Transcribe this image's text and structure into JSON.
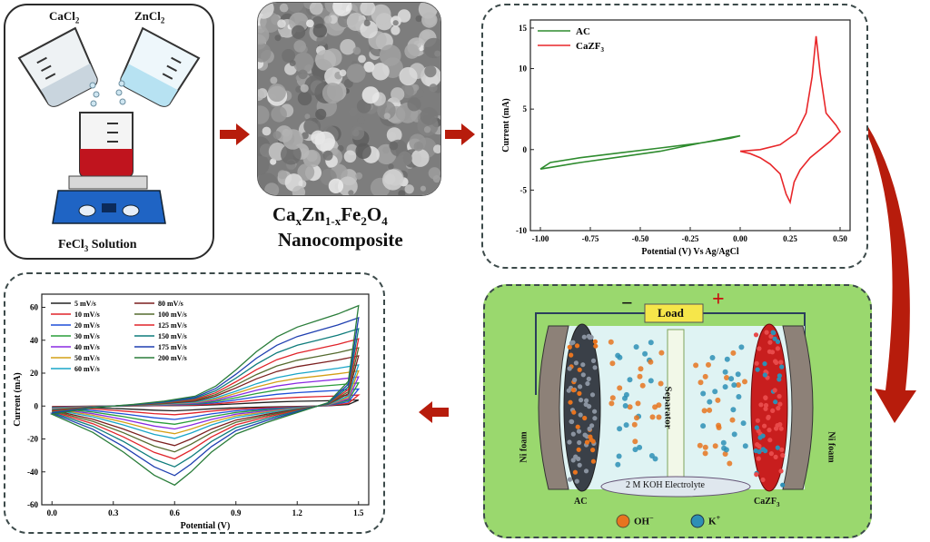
{
  "synthesis": {
    "reagent_left": "CaCl",
    "reagent_left_sub": "2",
    "reagent_right": "ZnCl",
    "reagent_right_sub": "2",
    "solution": "FeCl",
    "solution_sub": "3",
    "solution_suffix": " Solution"
  },
  "product": {
    "formula_parts": [
      "Ca",
      "x",
      "Zn",
      "1-x",
      "Fe",
      "2",
      "O",
      "4"
    ],
    "name": "Nanocomposite"
  },
  "device": {
    "minus_sign": "−",
    "plus_sign": "+",
    "load_label": "Load",
    "separator_label": "Separator",
    "left_foam_label": "Ni foam",
    "right_foam_label": "Ni foam",
    "electrolyte_label": "2 M KOH Electrolyte",
    "left_electrode_label": "AC",
    "right_electrode_label": "CaZF",
    "right_electrode_sub": "3",
    "ion_oh_label": "OH",
    "ion_oh_sup": "−",
    "ion_k_label": "K",
    "ion_k_sup": "+",
    "colors": {
      "panel_bg": "#9ad86e",
      "ac": "#3a4048",
      "czf": "#c81e1e",
      "oh": "#e8741f",
      "k": "#2e8fb5"
    }
  },
  "arrow_color": "#b71c0c",
  "chart_data": [
    {
      "id": "cv_comparison",
      "type": "line",
      "xlabel": "Potential (V) Vs Ag/AgCl",
      "ylabel": "Current (mA)",
      "xlim": [
        -1.05,
        0.55
      ],
      "ylim": [
        -10,
        16
      ],
      "xticks": [
        "-1.00",
        "-0.75",
        "-0.50",
        "-0.25",
        "0.00",
        "0.25",
        "0.50"
      ],
      "xtick_values": [
        -1.0,
        -0.75,
        -0.5,
        -0.25,
        0.0,
        0.25,
        0.5
      ],
      "yticks": [
        "15",
        "10",
        "5",
        "0",
        "-5",
        "-10"
      ],
      "ytick_values": [
        15,
        10,
        5,
        0,
        -5,
        -10
      ],
      "legend_position": "top-left",
      "series": [
        {
          "name": "AC",
          "color": "#2e8b2e",
          "x": [
            -1.0,
            -0.95,
            -0.8,
            -0.6,
            -0.4,
            -0.2,
            -0.05,
            0.0,
            -0.05,
            -0.2,
            -0.4,
            -0.6,
            -0.8,
            -0.95,
            -1.0
          ],
          "y": [
            -2.4,
            -1.6,
            -1.0,
            -0.4,
            0.2,
            0.8,
            1.4,
            1.7,
            1.5,
            0.8,
            -0.2,
            -0.9,
            -1.6,
            -2.2,
            -2.4
          ]
        },
        {
          "name": "CaZF3",
          "color": "#e8272a",
          "x": [
            0.0,
            0.1,
            0.2,
            0.28,
            0.33,
            0.36,
            0.38,
            0.4,
            0.43,
            0.48,
            0.5,
            0.49,
            0.45,
            0.4,
            0.35,
            0.3,
            0.27,
            0.25,
            0.23,
            0.2,
            0.15,
            0.1,
            0.05,
            0.0
          ],
          "y": [
            -0.2,
            0.0,
            0.6,
            2.0,
            4.5,
            9.0,
            14.0,
            9.5,
            4.5,
            3.0,
            2.2,
            2.0,
            1.0,
            0.0,
            -1.0,
            -2.5,
            -4.0,
            -6.5,
            -5.5,
            -3.0,
            -1.8,
            -1.0,
            -0.5,
            -0.2
          ]
        }
      ]
    },
    {
      "id": "cv_scan_rates",
      "type": "line",
      "xlabel": "Potential (V)",
      "ylabel": "Current (mA)",
      "xlim": [
        -0.05,
        1.55
      ],
      "ylim": [
        -60,
        68
      ],
      "xticks": [
        "0.0",
        "0.3",
        "0.6",
        "0.9",
        "1.2",
        "1.5"
      ],
      "xtick_values": [
        0.0,
        0.3,
        0.6,
        0.9,
        1.2,
        1.5
      ],
      "yticks": [
        "60",
        "40",
        "20",
        "0",
        "-20",
        "-40",
        "-60"
      ],
      "ytick_values": [
        60,
        40,
        20,
        0,
        -20,
        -40,
        -60
      ],
      "legend_position": "top-left",
      "series": [
        {
          "name": "5 mV/s",
          "scale": 0.06,
          "color": "#222222"
        },
        {
          "name": "10 mV/s",
          "scale": 0.11,
          "color": "#e0242a"
        },
        {
          "name": "20 mV/s",
          "scale": 0.17,
          "color": "#1f4fd8"
        },
        {
          "name": "30 mV/s",
          "scale": 0.23,
          "color": "#2a9d3a"
        },
        {
          "name": "40 mV/s",
          "scale": 0.29,
          "color": "#8a2be2"
        },
        {
          "name": "50 mV/s",
          "scale": 0.35,
          "color": "#d4a017"
        },
        {
          "name": "60 mV/s",
          "scale": 0.41,
          "color": "#1aa5c8"
        },
        {
          "name": "80 mV/s",
          "scale": 0.5,
          "color": "#7b1f1f"
        },
        {
          "name": "100 mV/s",
          "scale": 0.58,
          "color": "#556b2f"
        },
        {
          "name": "125 mV/s",
          "scale": 0.67,
          "color": "#e0242a"
        },
        {
          "name": "150 mV/s",
          "scale": 0.77,
          "color": "#0e7c7b"
        },
        {
          "name": "175 mV/s",
          "scale": 0.88,
          "color": "#1f3fb0"
        },
        {
          "name": "200 mV/s",
          "scale": 1.0,
          "color": "#2a7d3a"
        }
      ],
      "reference_curve": {
        "x_forward": [
          0.0,
          0.2,
          0.4,
          0.55,
          0.7,
          0.8,
          0.9,
          1.0,
          1.1,
          1.2,
          1.3,
          1.4,
          1.5
        ],
        "y_forward": [
          -5,
          -1,
          1,
          3,
          6,
          12,
          22,
          33,
          42,
          48,
          52,
          56,
          61
        ],
        "x_reverse": [
          1.5,
          1.45,
          1.35,
          1.2,
          1.05,
          0.9,
          0.78,
          0.68,
          0.6,
          0.5,
          0.35,
          0.2,
          0.0
        ],
        "y_reverse": [
          61,
          15,
          2,
          -4,
          -10,
          -17,
          -28,
          -40,
          -48,
          -42,
          -28,
          -16,
          -5
        ]
      }
    }
  ]
}
